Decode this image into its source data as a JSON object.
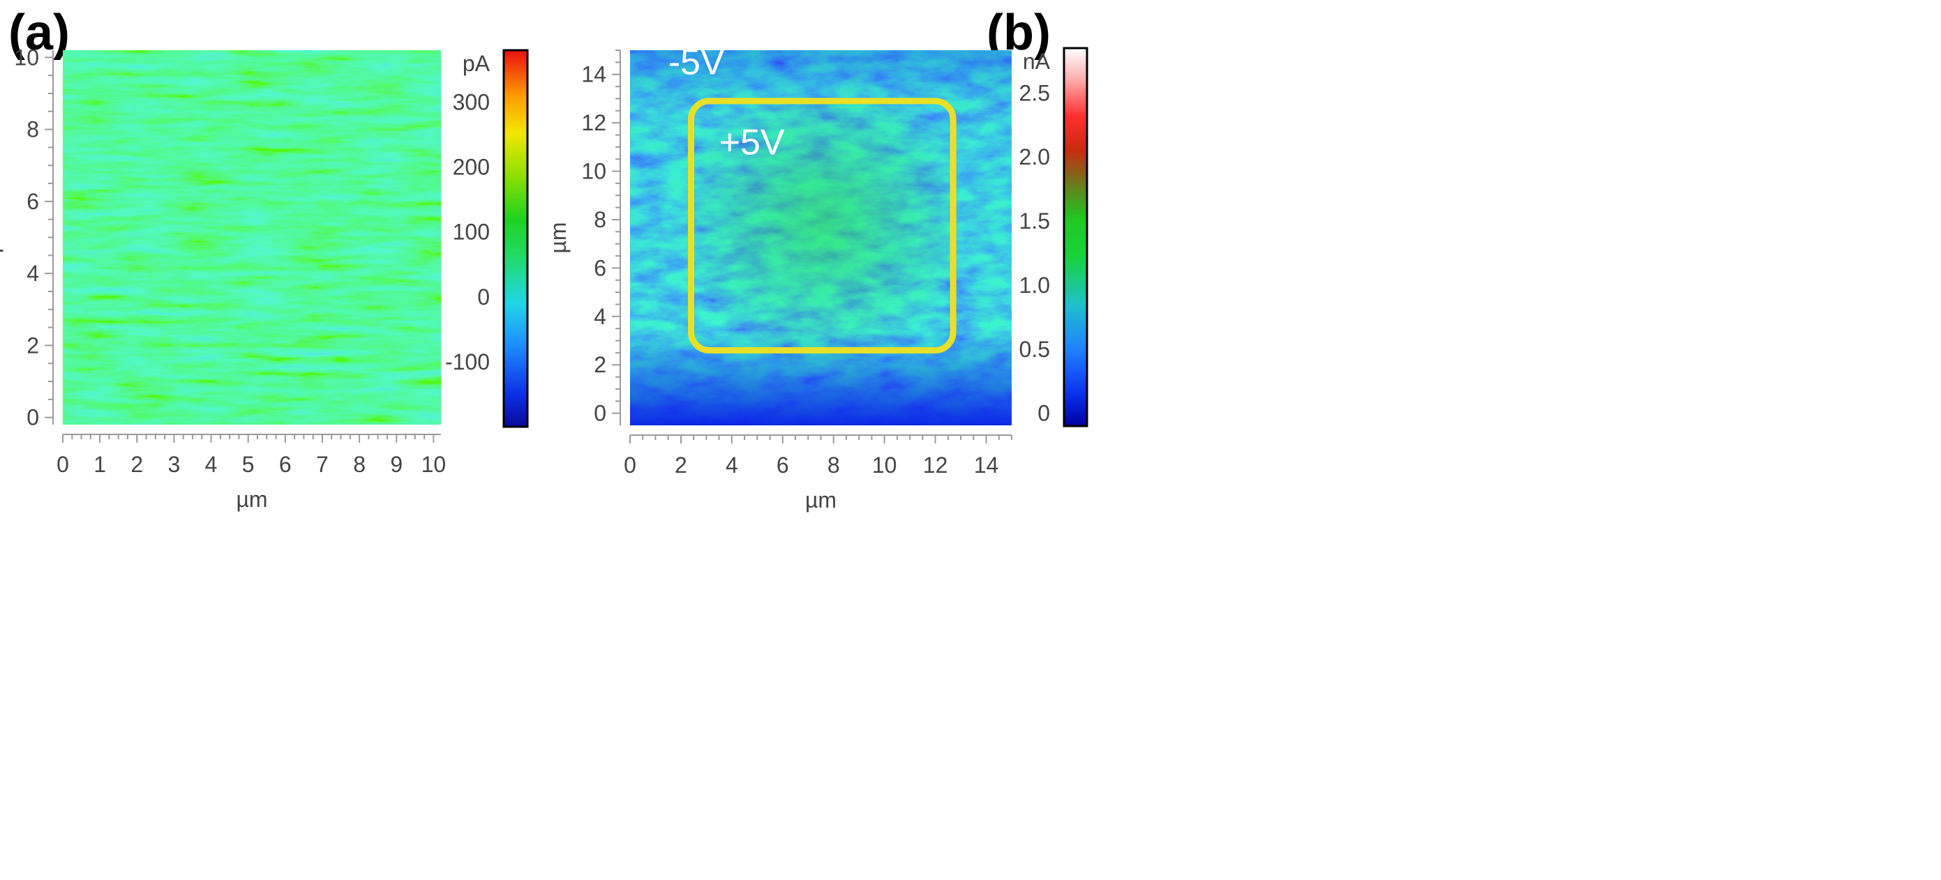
{
  "figure": {
    "panel_a_label": "(a)",
    "panel_b_label": "(b)"
  },
  "chart_data": [
    {
      "type": "heatmap",
      "title": "",
      "xlabel": "µm",
      "ylabel": "µm",
      "xlim": [
        0,
        10.2
      ],
      "ylim": [
        -0.2,
        10.2
      ],
      "xticks": [
        "0",
        "1",
        "2",
        "3",
        "4",
        "5",
        "6",
        "7",
        "8",
        "9",
        "10"
      ],
      "yticks": [
        "0",
        "2",
        "4",
        "6",
        "8",
        "10"
      ],
      "colorbar": {
        "unit": "pA",
        "range": [
          -200,
          380
        ],
        "ticks": [
          "-100",
          "0",
          "100",
          "200",
          "300"
        ]
      },
      "map_description_values": {
        "typical_current": 40,
        "unit": "pA"
      },
      "annotations": []
    },
    {
      "type": "heatmap",
      "title": "",
      "xlabel": "µm",
      "ylabel": "µm",
      "xlim": [
        0,
        15
      ],
      "ylim": [
        -0.5,
        15
      ],
      "xticks": [
        "0",
        "2",
        "4",
        "6",
        "8",
        "10",
        "12",
        "14"
      ],
      "yticks": [
        "0",
        "2",
        "4",
        "6",
        "8",
        "10",
        "12",
        "14"
      ],
      "colorbar": {
        "unit": "nA",
        "range": [
          -0.1,
          2.85
        ],
        "ticks": [
          "0",
          "0.5",
          "1.0",
          "1.5",
          "2.0",
          "2.5"
        ]
      },
      "annotations": [
        {
          "text": "-5V",
          "x": 1.5,
          "y": 14.0
        },
        {
          "text": "+5V",
          "x": 3.5,
          "y": 10.7
        }
      ],
      "highlight_region": {
        "x0": 2.4,
        "x1": 12.7,
        "y0": 2.6,
        "y1": 12.9,
        "color": "#e8e028"
      }
    }
  ]
}
